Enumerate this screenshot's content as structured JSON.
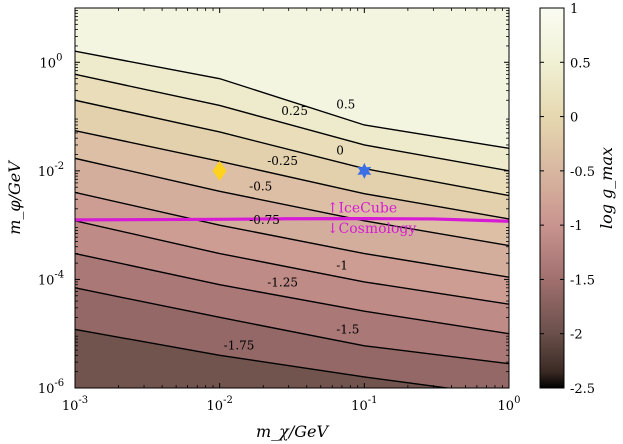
{
  "chart_data": {
    "type": "heatmap",
    "subtype": "filled-contour",
    "xscale": "log",
    "yscale": "log",
    "xlim": [
      0.001,
      1
    ],
    "ylim": [
      1e-06,
      10
    ],
    "xlabel": "m_χ/GeV",
    "ylabel": "m_φ/GeV",
    "xticks": [
      {
        "value": 0.001,
        "base": "10",
        "exp": "-3"
      },
      {
        "value": 0.01,
        "base": "10",
        "exp": "-2"
      },
      {
        "value": 0.1,
        "base": "10",
        "exp": "-1"
      },
      {
        "value": 1,
        "base": "10",
        "exp": "0"
      }
    ],
    "yticks": [
      {
        "value": 1e-06,
        "base": "10",
        "exp": "-6"
      },
      {
        "value": 0.0001,
        "base": "10",
        "exp": "-4"
      },
      {
        "value": 0.01,
        "base": "10",
        "exp": "-2"
      },
      {
        "value": 1,
        "base": "10",
        "exp": "0"
      }
    ],
    "colorbar": {
      "label": "log g_max",
      "range": [
        -2.5,
        1
      ],
      "ticks": [
        "1",
        "0.5",
        "0",
        "-0.5",
        "-1",
        "-1.5",
        "-2",
        "-2.5"
      ],
      "tick_values": [
        1,
        0.5,
        0,
        -0.5,
        -1,
        -1.5,
        -2,
        -2.5
      ],
      "colors": [
        "#000000",
        "#3a2a24",
        "#6a4f4a",
        "#a0706f",
        "#c9948f",
        "#d8b7a0",
        "#e6d8b0",
        "#f0f1d5",
        "#fbfcf2"
      ],
      "color_stops": [
        -2.5,
        -2.35,
        -2.0,
        -1.5,
        -1.0,
        -0.5,
        0.0,
        0.5,
        1.0
      ]
    },
    "contours": [
      {
        "level": 0.5,
        "label": "0.5",
        "points": [
          [
            0.001,
            1.6
          ],
          [
            0.01,
            0.5
          ],
          [
            0.1,
            0.07
          ],
          [
            1,
            0.026
          ]
        ]
      },
      {
        "level": 0.25,
        "label": "0.25",
        "points": [
          [
            0.001,
            0.6
          ],
          [
            0.01,
            0.16
          ],
          [
            0.1,
            0.03
          ],
          [
            1,
            0.01
          ]
        ]
      },
      {
        "level": 0.0,
        "label": "0",
        "points": [
          [
            0.001,
            0.2
          ],
          [
            0.01,
            0.052
          ],
          [
            0.1,
            0.011
          ],
          [
            1,
            0.0035
          ]
        ]
      },
      {
        "level": -0.25,
        "label": "-0.25",
        "points": [
          [
            0.001,
            0.055
          ],
          [
            0.01,
            0.015
          ],
          [
            0.1,
            0.0038
          ],
          [
            1,
            0.0013
          ]
        ]
      },
      {
        "level": -0.5,
        "label": "-0.5",
        "points": [
          [
            0.001,
            0.017
          ],
          [
            0.01,
            0.0042
          ],
          [
            0.1,
            0.0012
          ],
          [
            1,
            0.00042
          ]
        ]
      },
      {
        "level": -0.75,
        "label": "-0.75",
        "points": [
          [
            0.001,
            0.004
          ],
          [
            0.01,
            0.001
          ],
          [
            0.1,
            0.0003
          ],
          [
            1,
            0.00011
          ]
        ]
      },
      {
        "level": -1.0,
        "label": "-1",
        "points": [
          [
            0.001,
            0.0012
          ],
          [
            0.01,
            0.0003
          ],
          [
            0.1,
            9e-05
          ],
          [
            1,
            3.5e-05
          ]
        ]
      },
      {
        "level": -1.25,
        "label": "-1.25",
        "points": [
          [
            0.001,
            0.0003
          ],
          [
            0.01,
            8e-05
          ],
          [
            0.1,
            2.6e-05
          ],
          [
            1,
            1e-05
          ]
        ]
      },
      {
        "level": -1.5,
        "label": "-1.5",
        "points": [
          [
            0.001,
            7e-05
          ],
          [
            0.01,
            2e-05
          ],
          [
            0.1,
            6e-06
          ],
          [
            1,
            2.8e-06
          ]
        ]
      },
      {
        "level": -1.75,
        "label": "-1.75",
        "points": [
          [
            0.001,
            1.2e-05
          ],
          [
            0.01,
            4e-06
          ],
          [
            0.1,
            1.6e-06
          ],
          [
            0.5,
            9e-07
          ]
        ]
      }
    ],
    "boundary_line": {
      "color": "#d61ad6",
      "points": [
        [
          0.001,
          0.00125
        ],
        [
          0.01,
          0.00128
        ],
        [
          0.03,
          0.00131
        ],
        [
          0.1,
          0.00132
        ],
        [
          0.3,
          0.0013
        ],
        [
          1,
          0.00118
        ]
      ],
      "label_above": "↑IceCube",
      "label_below": "↓Cosmology"
    },
    "markers": [
      {
        "shape": "diamond",
        "color": "#ffd21f",
        "x": 0.01,
        "y": 0.01
      },
      {
        "shape": "star",
        "color": "#3b6fe6",
        "x": 0.1,
        "y": 0.01
      }
    ]
  }
}
